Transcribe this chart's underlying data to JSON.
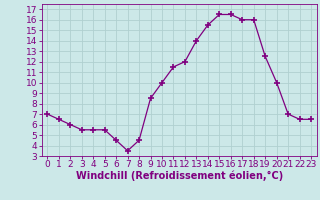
{
  "x": [
    0,
    1,
    2,
    3,
    4,
    5,
    6,
    7,
    8,
    9,
    10,
    11,
    12,
    13,
    14,
    15,
    16,
    17,
    18,
    19,
    20,
    21,
    22,
    23
  ],
  "y": [
    7.0,
    6.5,
    6.0,
    5.5,
    5.5,
    5.5,
    4.5,
    3.5,
    4.5,
    8.5,
    10.0,
    11.5,
    12.0,
    14.0,
    15.5,
    16.5,
    16.5,
    16.0,
    16.0,
    12.5,
    10.0,
    7.0,
    6.5,
    6.5
  ],
  "line_color": "#800080",
  "marker": "+",
  "marker_size": 4,
  "xlabel": "Windchill (Refroidissement éolien,°C)",
  "ylabel_ticks": [
    3,
    4,
    5,
    6,
    7,
    8,
    9,
    10,
    11,
    12,
    13,
    14,
    15,
    16,
    17
  ],
  "xlim": [
    -0.5,
    23.5
  ],
  "ylim": [
    3,
    17.5
  ],
  "bg_color": "#cce8e8",
  "grid_color": "#b0d0d0",
  "tick_color": "#800080",
  "label_color": "#800080",
  "xlabel_fontsize": 7,
  "tick_fontsize": 6.5
}
